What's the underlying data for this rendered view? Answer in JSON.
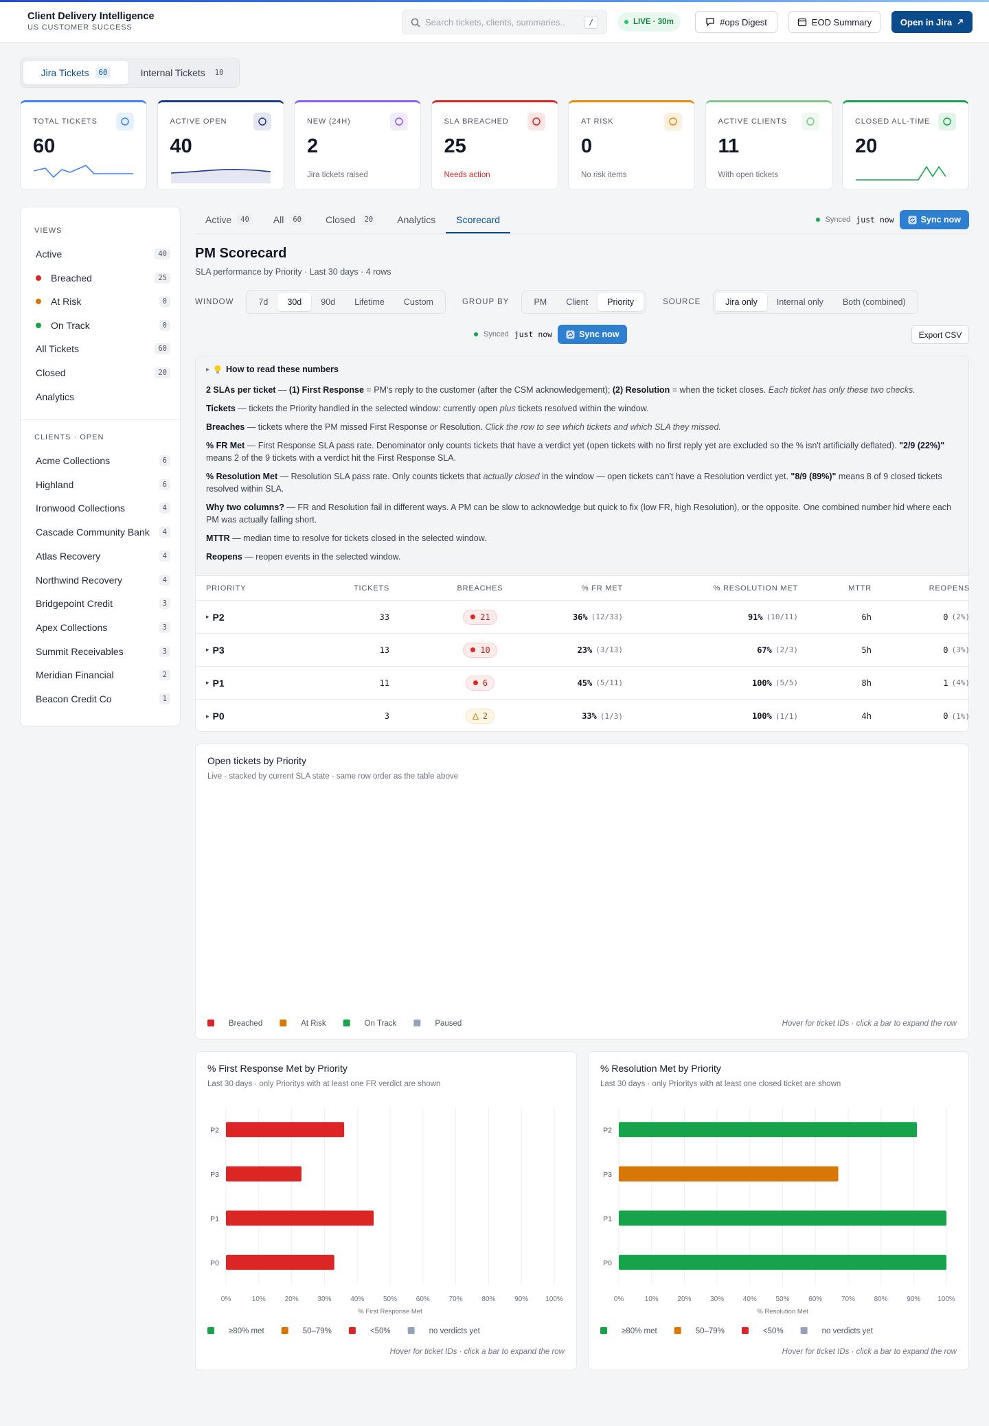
{
  "header": {
    "title": "Client Delivery Intelligence",
    "subtitle": "US CUSTOMER SUCCESS",
    "search_placeholder": "Search tickets, clients, summaries..",
    "search_shortcut": "/",
    "live": "LIVE · 30m",
    "buttons": [
      "#ops Digest",
      "EOD Summary",
      "Open in Jira"
    ]
  },
  "source_tabs": {
    "active": 0,
    "items": [
      {
        "label": "Jira Tickets",
        "count": 60
      },
      {
        "label": "Internal Tickets",
        "count": 10
      }
    ]
  },
  "kpis": [
    {
      "label": "TOTAL TICKETS",
      "value": 60,
      "color": "#3b82f6"
    },
    {
      "label": "ACTIVE OPEN",
      "value": 40,
      "color": "#1e3a8a"
    },
    {
      "label": "NEW (24H)",
      "value": 2,
      "note": "Jira tickets raised",
      "color": "#8b5cf6"
    },
    {
      "label": "SLA BREACHED",
      "value": 25,
      "note": "Needs action",
      "note_color": "#dc2626",
      "color": "#dc2626"
    },
    {
      "label": "AT RISK",
      "value": 0,
      "note": "No risk items",
      "color": "#ea8a0c"
    },
    {
      "label": "ACTIVE CLIENTS",
      "value": 11,
      "note": "With open tickets",
      "color": "#7cc98a"
    },
    {
      "label": "CLOSED ALL-TIME",
      "value": 20,
      "color": "#16a34a"
    }
  ],
  "sidebar": {
    "views_title": "VIEWS",
    "views": [
      {
        "label": "Active",
        "count": 40
      },
      {
        "label": "Breached",
        "count": 25,
        "dot": "#dc2626"
      },
      {
        "label": "At Risk",
        "count": 0,
        "dot": "#d97706"
      },
      {
        "label": "On Track",
        "count": 0,
        "dot": "#16a34a"
      },
      {
        "label": "All Tickets",
        "count": 60
      },
      {
        "label": "Closed",
        "count": 20
      },
      {
        "label": "Analytics"
      }
    ],
    "clients_title": "CLIENTS · OPEN",
    "clients": [
      {
        "label": "Acme Collections",
        "count": 6
      },
      {
        "label": "Highland",
        "count": 6
      },
      {
        "label": "Ironwood Collections",
        "count": 4
      },
      {
        "label": "Cascade Community Bank",
        "count": 4
      },
      {
        "label": "Atlas Recovery",
        "count": 4
      },
      {
        "label": "Northwind Recovery",
        "count": 4
      },
      {
        "label": "Bridgepoint Credit",
        "count": 3
      },
      {
        "label": "Apex Collections",
        "count": 3
      },
      {
        "label": "Summit Receivables",
        "count": 3
      },
      {
        "label": "Meridian Financial",
        "count": 2
      },
      {
        "label": "Beacon Credit Co",
        "count": 1
      }
    ]
  },
  "main_tabs": {
    "active": 4,
    "items": [
      {
        "label": "Active",
        "count": 40
      },
      {
        "label": "All",
        "count": 60
      },
      {
        "label": "Closed",
        "count": 20
      },
      {
        "label": "Analytics"
      },
      {
        "label": "Scorecard"
      }
    ]
  },
  "sync": {
    "status": "Synced",
    "time": "just now",
    "button": "Sync now"
  },
  "scorecard": {
    "title": "PM Scorecard",
    "subtitle": "SLA performance by Priority · Last 30 days · 4 rows",
    "filters": [
      {
        "label": "WINDOW",
        "options": [
          "7d",
          "30d",
          "90d",
          "Lifetime",
          "Custom"
        ],
        "active": 1
      },
      {
        "label": "GROUP BY",
        "options": [
          "PM",
          "Client",
          "Priority"
        ],
        "active": 2
      },
      {
        "label": "SOURCE",
        "options": [
          "Jira only",
          "Internal only",
          "Both (combined)"
        ],
        "active": 0
      }
    ],
    "export": "Export CSV",
    "help": {
      "title": "How to read these numbers",
      "paragraphs": [
        [
          {
            "text": "2 SLAs per ticket",
            "style": "bold"
          },
          {
            "text": " — "
          },
          {
            "text": "(1) First Response",
            "style": "bold"
          },
          {
            "text": " = PM's reply to the customer (after the CSM acknowledgement); "
          },
          {
            "text": "(2) Resolution",
            "style": "bold"
          },
          {
            "text": " = when the ticket closes. "
          },
          {
            "text": "Each ticket has only these two checks.",
            "style": "italic"
          }
        ],
        [
          {
            "text": "Tickets",
            "style": "bold"
          },
          {
            "text": " — tickets the Priority handled in the selected window: currently open "
          },
          {
            "text": "plus",
            "style": "italic"
          },
          {
            "text": " tickets resolved within the window."
          }
        ],
        [
          {
            "text": "Breaches",
            "style": "bold"
          },
          {
            "text": " — tickets where the PM missed First Response "
          },
          {
            "text": "or",
            "style": "italic"
          },
          {
            "text": " Resolution. "
          },
          {
            "text": "Click the row to see which tickets and which SLA they missed.",
            "style": "italic"
          }
        ],
        [
          {
            "text": "% FR Met",
            "style": "bold"
          },
          {
            "text": " — First Response SLA pass rate. Denominator only counts tickets that have a verdict yet (open tickets with no first reply yet are excluded so the % isn't artificially deflated). "
          },
          {
            "text": "\"2/9 (22%)\"",
            "style": "bold"
          },
          {
            "text": " means 2 of the 9 tickets with a verdict hit the First Response SLA."
          }
        ],
        [
          {
            "text": "% Resolution Met",
            "style": "bold"
          },
          {
            "text": " — Resolution SLA pass rate. Only counts tickets that "
          },
          {
            "text": "actually closed",
            "style": "italic"
          },
          {
            "text": " in the window — open tickets can't have a Resolution verdict yet. "
          },
          {
            "text": "\"8/9 (89%)\"",
            "style": "bold"
          },
          {
            "text": " means 8 of 9 closed tickets resolved within SLA."
          }
        ],
        [
          {
            "text": "Why two columns?",
            "style": "bold"
          },
          {
            "text": " — FR and Resolution fail in different ways. A PM can be slow to acknowledge but quick to fix (low FR, high Resolution), or the opposite. One combined number hid where each PM was actually falling short."
          }
        ],
        [
          {
            "text": "MTTR",
            "style": "bold"
          },
          {
            "text": " — median time to resolve for tickets closed in the selected window."
          }
        ],
        [
          {
            "text": "Reopens",
            "style": "bold"
          },
          {
            "text": " — reopen events in the selected window."
          }
        ]
      ]
    },
    "table": {
      "columns": [
        "PRIORITY",
        "TICKETS",
        "BREACHES",
        "% FR MET",
        "% RESOLUTION MET",
        "MTTR",
        "REOPENS"
      ],
      "rows": [
        {
          "priority": "P2",
          "tickets": 33,
          "breaches": 21,
          "breach_style": "breached",
          "fr": "36%",
          "fr_detail": "(12/33)",
          "res": "91%",
          "res_detail": "(10/11)",
          "mttr": "6h",
          "reopens": 0,
          "reopens_detail": "(2%)"
        },
        {
          "priority": "P3",
          "tickets": 13,
          "breaches": 10,
          "breach_style": "breached",
          "fr": "23%",
          "fr_detail": "(3/13)",
          "res": "67%",
          "res_detail": "(2/3)",
          "mttr": "5h",
          "reopens": 0,
          "reopens_detail": "(3%)"
        },
        {
          "priority": "P1",
          "tickets": 11,
          "breaches": 6,
          "breach_style": "breached",
          "fr": "45%",
          "fr_detail": "(5/11)",
          "res": "100%",
          "res_detail": "(5/5)",
          "mttr": "8h",
          "reopens": 1,
          "reopens_detail": "(4%)"
        },
        {
          "priority": "P0",
          "tickets": 3,
          "breaches": 2,
          "breach_style": "warning",
          "fr": "33%",
          "fr_detail": "(1/3)",
          "res": "100%",
          "res_detail": "(1/1)",
          "mttr": "4h",
          "reopens": 0,
          "reopens_detail": "(1%)"
        }
      ]
    }
  },
  "chart_data": [
    {
      "type": "bar",
      "orientation": "horizontal",
      "stacked": true,
      "title": "Open tickets by Priority",
      "subtitle": "Live · stacked by current SLA state · same row order as the table above",
      "categories": [],
      "series": [
        {
          "name": "Breached",
          "color": "#dc2626",
          "values": []
        },
        {
          "name": "At Risk",
          "color": "#d97706",
          "values": []
        },
        {
          "name": "On Track",
          "color": "#16a34a",
          "values": []
        },
        {
          "name": "Paused",
          "color": "#94a3b8",
          "values": []
        }
      ],
      "hint": "Hover for ticket IDs · click a bar to expand the row"
    },
    {
      "type": "bar",
      "orientation": "horizontal",
      "title": "% First Response Met by Priority",
      "subtitle": "Last 30 days · only Prioritys with at least one FR verdict are shown",
      "categories": [
        "P2",
        "P3",
        "P1",
        "P0"
      ],
      "values": [
        36,
        23,
        45,
        33
      ],
      "colors": [
        "#dc2626",
        "#dc2626",
        "#dc2626",
        "#dc2626"
      ],
      "xlim": [
        0,
        100
      ],
      "xticks": [
        {
          "value": 0,
          "label": "0%"
        },
        {
          "value": 10,
          "label": "10%"
        },
        {
          "value": 20,
          "label": "20%"
        },
        {
          "value": 30,
          "label": "30%"
        },
        {
          "value": 40,
          "label": "40%"
        },
        {
          "value": 50,
          "label": "50%"
        },
        {
          "value": 60,
          "label": "60%"
        },
        {
          "value": 70,
          "label": "70%"
        },
        {
          "value": 80,
          "label": "80%"
        },
        {
          "value": 90,
          "label": "90%"
        },
        {
          "value": 100,
          "label": "100%"
        }
      ],
      "xlabel": "% First Response Met",
      "grid": true,
      "legend": [
        {
          "name": "≥80% met",
          "color": "#16a34a"
        },
        {
          "name": "50–79%",
          "color": "#d97706"
        },
        {
          "name": "<50%",
          "color": "#dc2626"
        },
        {
          "name": "no verdicts yet",
          "color": "#94a3b8"
        }
      ],
      "hint": "Hover for ticket IDs · click a bar to expand the row"
    },
    {
      "type": "bar",
      "orientation": "horizontal",
      "title": "% Resolution Met by Priority",
      "subtitle": "Last 30 days · only Prioritys with at least one closed ticket are shown",
      "categories": [
        "P2",
        "P3",
        "P1",
        "P0"
      ],
      "values": [
        91,
        67,
        100,
        100
      ],
      "colors": [
        "#16a34a",
        "#d97706",
        "#16a34a",
        "#16a34a"
      ],
      "xlim": [
        0,
        100
      ],
      "xticks": [
        {
          "value": 0,
          "label": "0%"
        },
        {
          "value": 10,
          "label": "10%"
        },
        {
          "value": 20,
          "label": "20%"
        },
        {
          "value": 30,
          "label": "30%"
        },
        {
          "value": 40,
          "label": "40%"
        },
        {
          "value": 50,
          "label": "50%"
        },
        {
          "value": 60,
          "label": "60%"
        },
        {
          "value": 70,
          "label": "70%"
        },
        {
          "value": 80,
          "label": "80%"
        },
        {
          "value": 90,
          "label": "90%"
        },
        {
          "value": 100,
          "label": "100%"
        }
      ],
      "xlabel": "% Resolution Met",
      "grid": true,
      "legend": [
        {
          "name": "≥80% met",
          "color": "#16a34a"
        },
        {
          "name": "50–79%",
          "color": "#d97706"
        },
        {
          "name": "<50%",
          "color": "#dc2626"
        },
        {
          "name": "no verdicts yet",
          "color": "#94a3b8"
        }
      ],
      "hint": "Hover for ticket IDs · click a bar to expand the row"
    }
  ]
}
